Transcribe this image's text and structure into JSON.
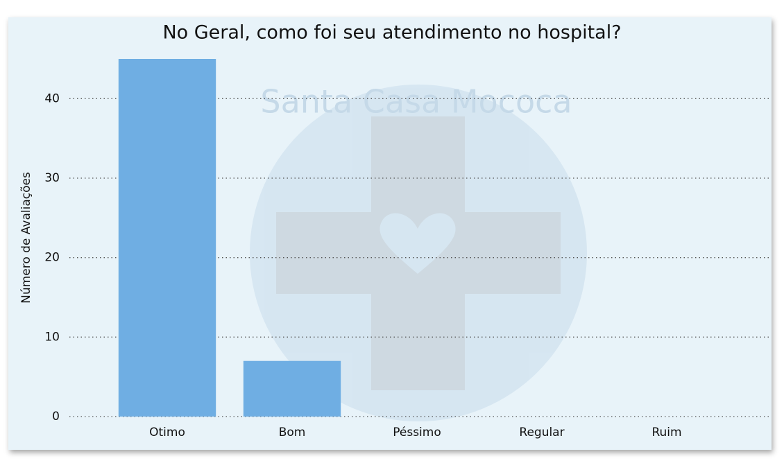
{
  "chart_data": {
    "type": "bar",
    "title": "No Geral, como foi seu atendimento no hospital?",
    "ylabel": "Número de Avaliações",
    "watermark": "Santa Casa Mococa",
    "categories": [
      "Otimo",
      "Bom",
      "Péssimo",
      "Regular",
      "Ruim"
    ],
    "values": [
      45,
      7,
      0,
      0,
      0
    ],
    "color": "#6faee3",
    "ylim": [
      0,
      45
    ],
    "yticks": [
      0,
      10,
      20,
      30,
      40
    ],
    "grid": true
  }
}
